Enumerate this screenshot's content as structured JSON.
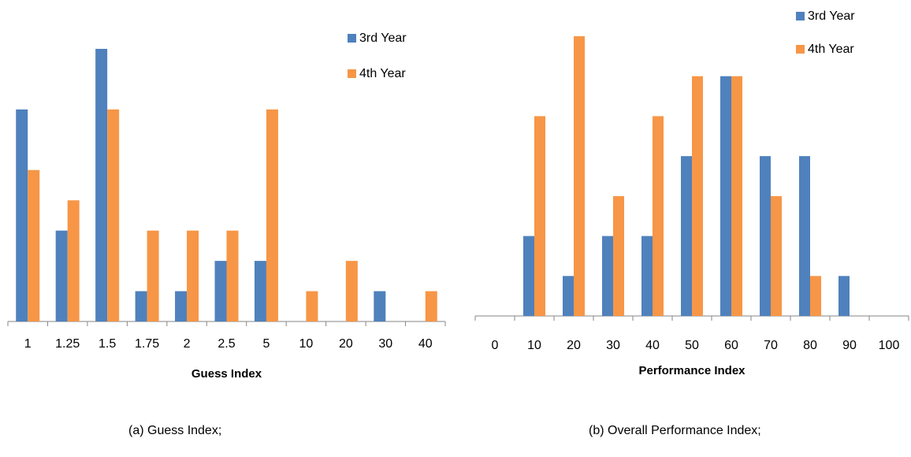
{
  "chart_data": [
    {
      "type": "bar",
      "x_label": "Guess Index",
      "caption": "(a)  Guess Index;",
      "categories": [
        "1",
        "1.25",
        "1.5",
        "1.75",
        "2",
        "2.5",
        "5",
        "10",
        "20",
        "30",
        "40"
      ],
      "series": [
        {
          "name": "3rd Year",
          "color": "#4f81bd",
          "values": [
            7,
            3,
            9,
            1,
            1,
            2,
            2,
            0,
            0,
            1,
            0
          ]
        },
        {
          "name": "4th Year",
          "color": "#f79646",
          "values": [
            5,
            4,
            7,
            3,
            3,
            3,
            7,
            1,
            2,
            0,
            1
          ]
        }
      ]
    },
    {
      "type": "bar",
      "x_label": "Performance Index",
      "caption": "(b) Overall Performance Index;",
      "categories": [
        "0",
        "10",
        "20",
        "30",
        "40",
        "50",
        "60",
        "70",
        "80",
        "90",
        "100"
      ],
      "series": [
        {
          "name": "3rd Year",
          "color": "#4f81bd",
          "values": [
            0,
            2,
            1,
            2,
            2,
            4,
            6,
            4,
            4,
            1,
            0
          ]
        },
        {
          "name": "4th Year",
          "color": "#f79646",
          "values": [
            0,
            5,
            7,
            3,
            5,
            6,
            6,
            3,
            1,
            0,
            0
          ]
        }
      ]
    }
  ]
}
